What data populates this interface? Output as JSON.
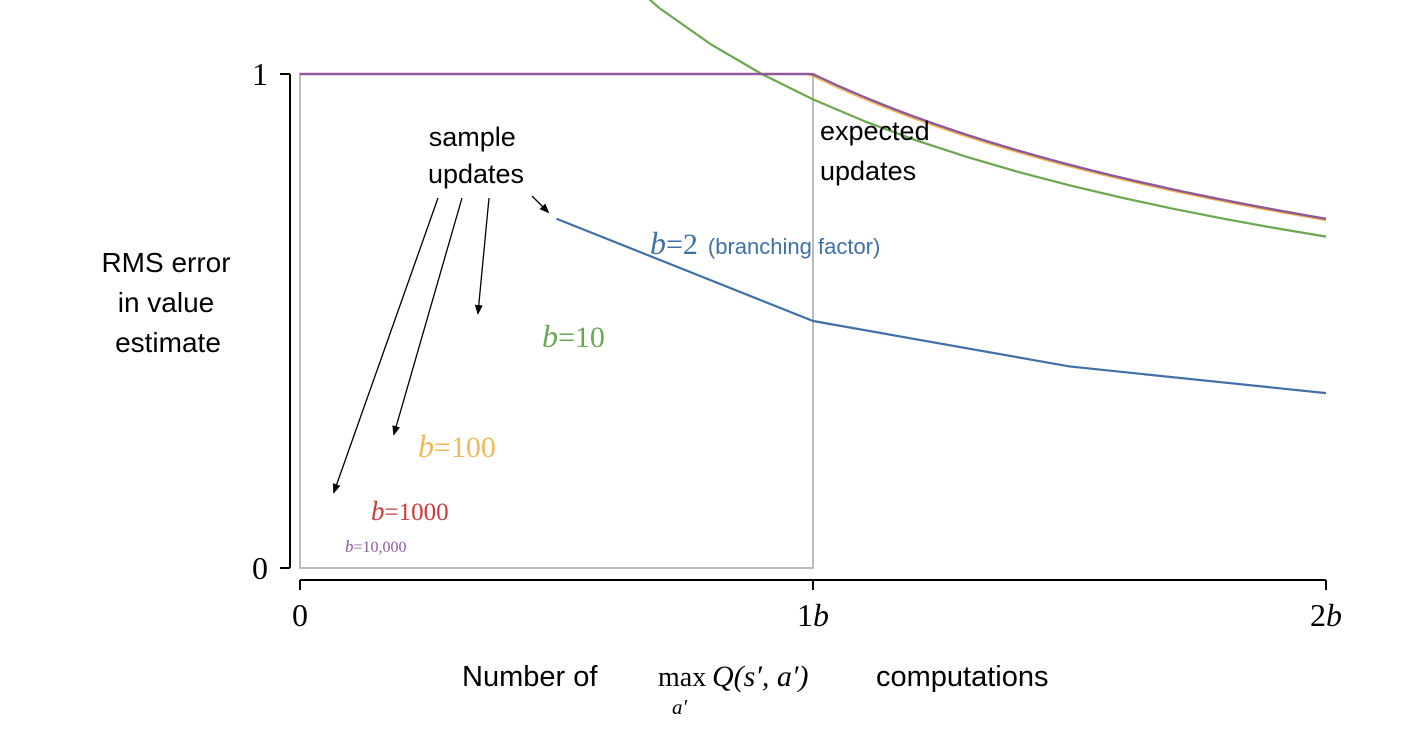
{
  "chart_data": {
    "type": "line",
    "xlabel": {
      "prefix": "Number of ",
      "op": "max",
      "sub": "a′",
      "expr": "Q(s′, a′)",
      "suffix": " computations"
    },
    "ylabel_lines": [
      "RMS error",
      "in value",
      "estimate"
    ],
    "xlim": [
      0,
      2
    ],
    "ylim": [
      0,
      1
    ],
    "x_ticks": [
      {
        "value": 0,
        "label": "0"
      },
      {
        "value": 1,
        "label": "1b"
      },
      {
        "value": 2,
        "label": "2b"
      }
    ],
    "y_ticks": [
      {
        "value": 0,
        "label": "0"
      },
      {
        "value": 1,
        "label": "1"
      }
    ],
    "grid": false,
    "series": [
      {
        "b": 2,
        "name": "b=2",
        "color": "#3f70a6",
        "points": [
          [
            0.5,
            0.707
          ],
          [
            1.0,
            0.5
          ],
          [
            1.5,
            0.408
          ],
          [
            2.0,
            0.354
          ]
        ]
      },
      {
        "b": 10,
        "name": "b=10",
        "color": "#6aa84f",
        "formula": "sqrt((b-1)/(b*t))"
      },
      {
        "b": 100,
        "name": "b=100",
        "color": "#f0b95a",
        "formula": "sqrt((b-1)/(b*t))"
      },
      {
        "b": 1000,
        "name": "b=1000",
        "color": "#cc3b3b",
        "formula": "sqrt((b-1)/(b*t))"
      },
      {
        "b": 10000,
        "name": "b=10,000",
        "color": "#8a5a9e",
        "formula": "sqrt((b-1)/(b*t))"
      }
    ],
    "series_labels": [
      {
        "var": "b",
        "eq": "=2",
        "note": "(branching factor)",
        "color": "#3f70a6"
      },
      {
        "var": "b",
        "eq": "=10",
        "color": "#6aa84f"
      },
      {
        "var": "b",
        "eq": "=100",
        "color": "#f0b95a"
      },
      {
        "var": "b",
        "eq": "=1000",
        "color": "#cc3b3b"
      },
      {
        "var": "b",
        "eq": "=10,000",
        "color": "#8a5a9e"
      }
    ],
    "expected_box": {
      "x": [
        0,
        1
      ],
      "y": [
        0,
        1
      ],
      "color": "#bbbbbb"
    },
    "annotations": {
      "sample": [
        "sample",
        "updates"
      ],
      "expected": [
        "expected",
        "updates"
      ]
    }
  }
}
